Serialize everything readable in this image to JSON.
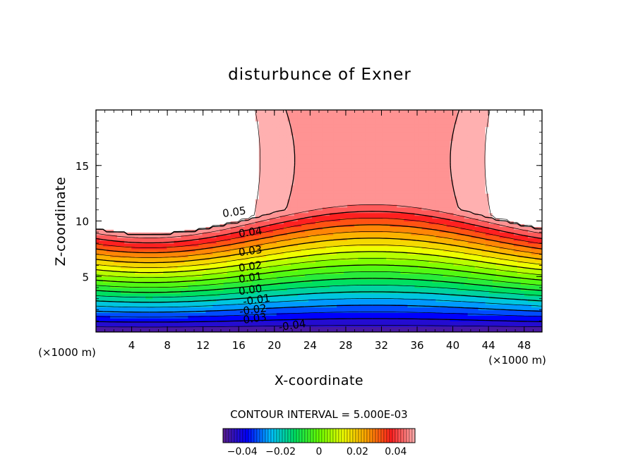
{
  "chart_data": {
    "type": "contour",
    "title": "disturbunce of Exner",
    "xlabel": "X-coordinate",
    "ylabel": "Z-coordinate",
    "x_unit": "(×1000 m)",
    "xlim": [
      0,
      50
    ],
    "ylim": [
      0,
      20
    ],
    "x_ticks": [
      4,
      8,
      12,
      16,
      20,
      24,
      28,
      32,
      36,
      40,
      44,
      48
    ],
    "y_ticks": [
      5,
      10,
      15
    ],
    "contour_interval_text": "CONTOUR INTERVAL = 5.000E-03",
    "contour_interval": 0.005,
    "contour_labels": [
      {
        "text": "0.05",
        "x": 15.5,
        "z": 10.8
      },
      {
        "text": "0.04",
        "x": 17.3,
        "z": 9.0
      },
      {
        "text": "0.03",
        "x": 17.3,
        "z": 7.3
      },
      {
        "text": "0.02",
        "x": 17.3,
        "z": 5.9
      },
      {
        "text": "0.01",
        "x": 17.3,
        "z": 4.9
      },
      {
        "text": "0.00",
        "x": 17.3,
        "z": 3.8
      },
      {
        "text": "-0.01",
        "x": 18.0,
        "z": 2.9
      },
      {
        "text": "-0.02",
        "x": 17.6,
        "z": 2.0
      },
      {
        "text": "-0.03",
        "x": 17.6,
        "z": 1.2
      },
      {
        "text": "-0.04",
        "x": 22.0,
        "z": 0.6
      }
    ],
    "color_range": [
      -0.05,
      0.05
    ],
    "colorbar_ticks": [
      {
        "value": -0.04,
        "label": "−0.04"
      },
      {
        "value": -0.02,
        "label": "−0.02"
      },
      {
        "value": 0.0,
        "label": "0"
      },
      {
        "value": 0.02,
        "label": "0.02"
      },
      {
        "value": 0.04,
        "label": "0.04"
      }
    ],
    "grid": false,
    "colormap": [
      "#5a1e8c",
      "#0000ff",
      "#00bfff",
      "#00e060",
      "#66ff00",
      "#eeff00",
      "#ffa000",
      "#ff2020",
      "#ffb0b0"
    ]
  }
}
